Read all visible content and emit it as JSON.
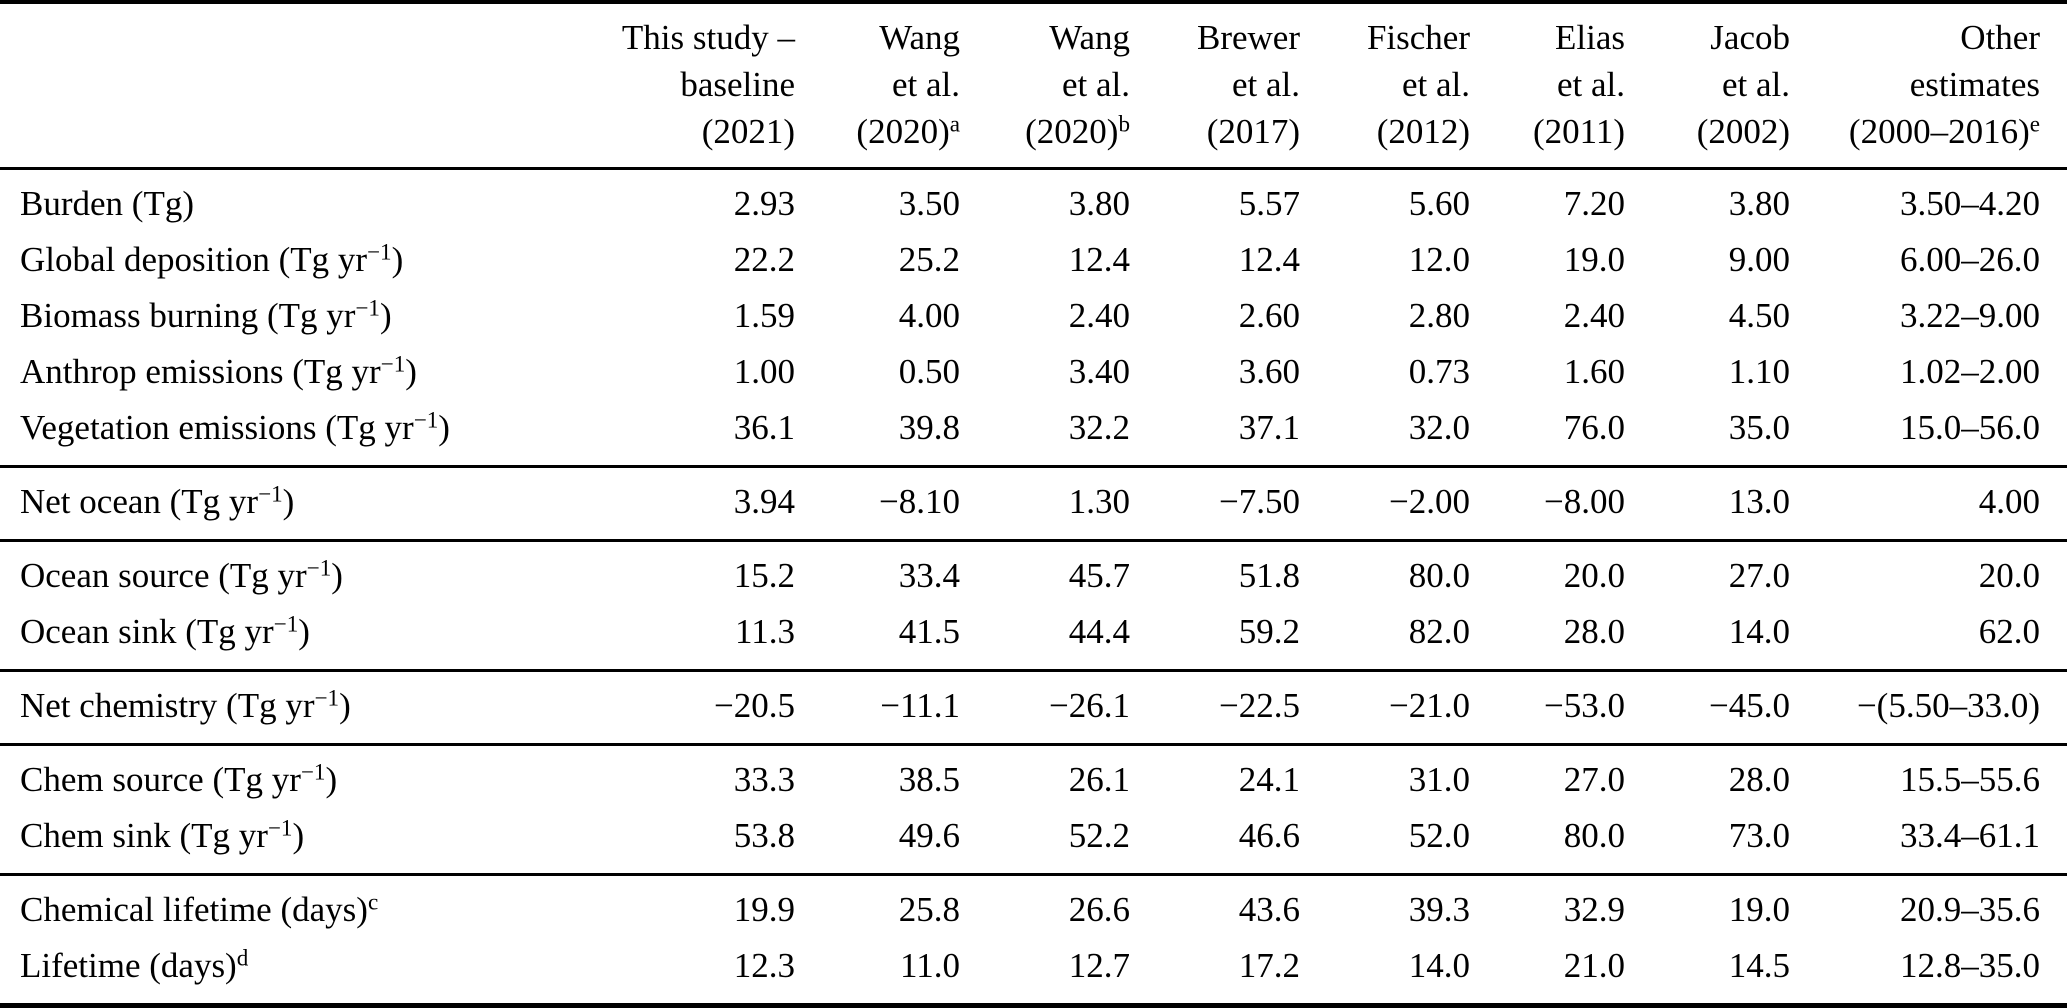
{
  "colors": {
    "text": "#000000",
    "background": "#ffffff",
    "rule": "#000000"
  },
  "table": {
    "header": {
      "row_label_column": "",
      "columns": [
        {
          "lines": [
            "This study –",
            "baseline",
            "(2021)"
          ],
          "sup": ""
        },
        {
          "lines": [
            "Wang",
            "et al.",
            "(2020)"
          ],
          "sup": "a"
        },
        {
          "lines": [
            "Wang",
            "et al.",
            "(2020)"
          ],
          "sup": "b"
        },
        {
          "lines": [
            "Brewer",
            "et al.",
            "(2017)"
          ],
          "sup": ""
        },
        {
          "lines": [
            "Fischer",
            "et al.",
            "(2012)"
          ],
          "sup": ""
        },
        {
          "lines": [
            "Elias",
            "et al.",
            "(2011)"
          ],
          "sup": ""
        },
        {
          "lines": [
            "Jacob",
            "et al.",
            "(2002)"
          ],
          "sup": ""
        },
        {
          "lines": [
            "Other",
            "estimates",
            "(2000–2016)"
          ],
          "sup": "e"
        }
      ]
    },
    "sections": [
      {
        "rows": [
          {
            "pre": "Burden (Tg)",
            "unit_sup": "",
            "post": "",
            "foot": "",
            "values": [
              "2.93",
              "3.50",
              "3.80",
              "5.57",
              "5.60",
              "7.20",
              "3.80",
              "3.50–4.20"
            ]
          },
          {
            "pre": "Global deposition (Tg yr",
            "unit_sup": "−1",
            "post": ")",
            "foot": "",
            "values": [
              "22.2",
              "25.2",
              "12.4",
              "12.4",
              "12.0",
              "19.0",
              "9.00",
              "6.00–26.0"
            ]
          },
          {
            "pre": "Biomass burning (Tg yr",
            "unit_sup": "−1",
            "post": ")",
            "foot": "",
            "values": [
              "1.59",
              "4.00",
              "2.40",
              "2.60",
              "2.80",
              "2.40",
              "4.50",
              "3.22–9.00"
            ]
          },
          {
            "pre": "Anthrop emissions (Tg yr",
            "unit_sup": "−1",
            "post": ")",
            "foot": "",
            "values": [
              "1.00",
              "0.50",
              "3.40",
              "3.60",
              "0.73",
              "1.60",
              "1.10",
              "1.02–2.00"
            ]
          },
          {
            "pre": "Vegetation emissions (Tg yr",
            "unit_sup": "−1",
            "post": ")",
            "foot": "",
            "values": [
              "36.1",
              "39.8",
              "32.2",
              "37.1",
              "32.0",
              "76.0",
              "35.0",
              "15.0–56.0"
            ]
          }
        ]
      },
      {
        "rows": [
          {
            "pre": "Net ocean (Tg yr",
            "unit_sup": "−1",
            "post": ")",
            "foot": "",
            "values": [
              "3.94",
              "−8.10",
              "1.30",
              "−7.50",
              "−2.00",
              "−8.00",
              "13.0",
              "4.00"
            ]
          }
        ]
      },
      {
        "rows": [
          {
            "pre": "Ocean source (Tg yr",
            "unit_sup": "−1",
            "post": ")",
            "foot": "",
            "values": [
              "15.2",
              "33.4",
              "45.7",
              "51.8",
              "80.0",
              "20.0",
              "27.0",
              "20.0"
            ]
          },
          {
            "pre": "Ocean sink (Tg yr",
            "unit_sup": "−1",
            "post": ")",
            "foot": "",
            "values": [
              "11.3",
              "41.5",
              "44.4",
              "59.2",
              "82.0",
              "28.0",
              "14.0",
              "62.0"
            ]
          }
        ]
      },
      {
        "rows": [
          {
            "pre": "Net chemistry (Tg yr",
            "unit_sup": "−1",
            "post": ")",
            "foot": "",
            "values": [
              "−20.5",
              "−11.1",
              "−26.1",
              "−22.5",
              "−21.0",
              "−53.0",
              "−45.0",
              "−(5.50–33.0)"
            ]
          }
        ]
      },
      {
        "rows": [
          {
            "pre": "Chem source (Tg yr",
            "unit_sup": "−1",
            "post": ")",
            "foot": "",
            "values": [
              "33.3",
              "38.5",
              "26.1",
              "24.1",
              "31.0",
              "27.0",
              "28.0",
              "15.5–55.6"
            ]
          },
          {
            "pre": "Chem sink (Tg yr",
            "unit_sup": "−1",
            "post": ")",
            "foot": "",
            "values": [
              "53.8",
              "49.6",
              "52.2",
              "46.6",
              "52.0",
              "80.0",
              "73.0",
              "33.4–61.1"
            ]
          }
        ]
      },
      {
        "rows": [
          {
            "pre": "Chemical lifetime (days)",
            "unit_sup": "",
            "post": "",
            "foot": "c",
            "values": [
              "19.9",
              "25.8",
              "26.6",
              "43.6",
              "39.3",
              "32.9",
              "19.0",
              "20.9–35.6"
            ]
          },
          {
            "pre": "Lifetime (days)",
            "unit_sup": "",
            "post": "",
            "foot": "d",
            "values": [
              "12.3",
              "11.0",
              "12.7",
              "17.2",
              "14.0",
              "21.0",
              "14.5",
              "12.8–35.0"
            ]
          }
        ]
      }
    ]
  }
}
